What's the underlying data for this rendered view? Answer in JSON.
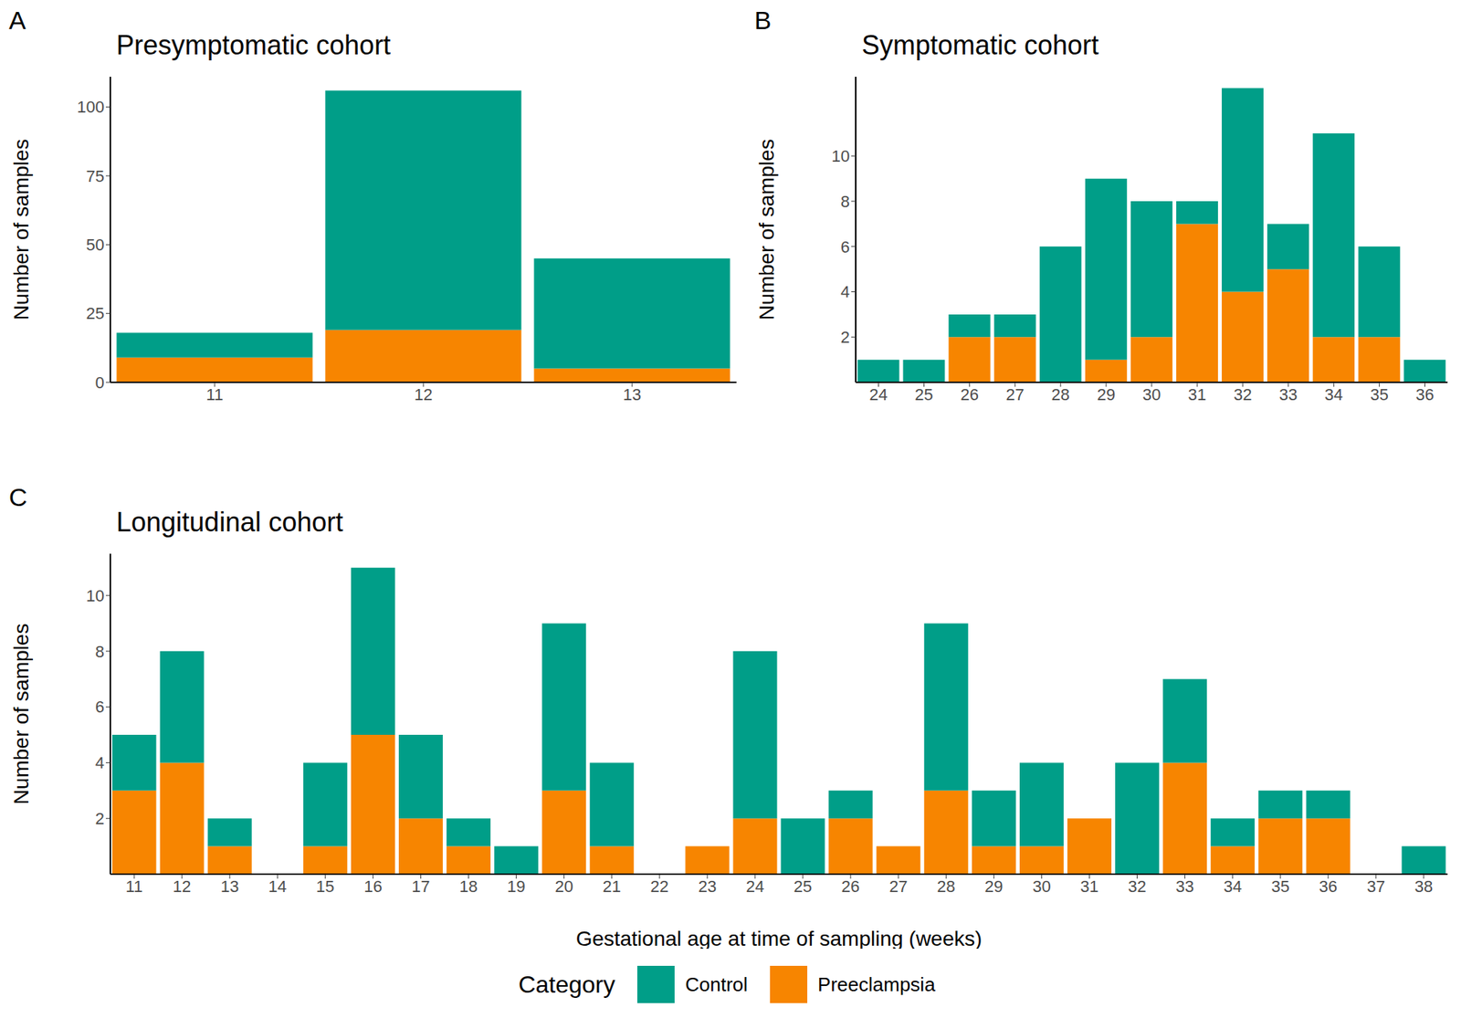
{
  "chart_data": [
    {
      "type": "bar",
      "panel": "A",
      "title": "Presymptomatic cohort",
      "y_label": "Number of samples",
      "stacked": true,
      "categories": [
        "11",
        "12",
        "13"
      ],
      "series": [
        {
          "name": "Preeclampsia",
          "color": "#f78500",
          "values": [
            9,
            19,
            5
          ]
        },
        {
          "name": "Control",
          "color": "#009e88",
          "values": [
            9,
            87,
            40
          ]
        }
      ],
      "ylim": [
        0,
        111
      ],
      "yticks": [
        0,
        25,
        50,
        75,
        100
      ]
    },
    {
      "type": "bar",
      "panel": "B",
      "title": "Symptomatic cohort",
      "y_label": "Number of samples",
      "stacked": true,
      "categories": [
        "24",
        "25",
        "26",
        "27",
        "28",
        "29",
        "30",
        "31",
        "32",
        "33",
        "34",
        "35",
        "36"
      ],
      "series": [
        {
          "name": "Preeclampsia",
          "color": "#f78500",
          "values": [
            0,
            0,
            2,
            2,
            0,
            1,
            2,
            7,
            4,
            5,
            2,
            2,
            0
          ]
        },
        {
          "name": "Control",
          "color": "#009e88",
          "values": [
            1,
            1,
            1,
            1,
            6,
            8,
            6,
            1,
            9,
            2,
            9,
            4,
            1
          ]
        }
      ],
      "ylim": [
        0,
        13.5
      ],
      "yticks": [
        2,
        4,
        6,
        8,
        10
      ]
    },
    {
      "type": "bar",
      "panel": "C",
      "title": "Longitudinal cohort",
      "y_label": "Number of samples",
      "x_label": "Gestational age at time of sampling (weeks)",
      "stacked": true,
      "legend": "bottom",
      "legend_title": "Category",
      "categories": [
        "11",
        "12",
        "13",
        "14",
        "15",
        "16",
        "17",
        "18",
        "19",
        "20",
        "21",
        "22",
        "23",
        "24",
        "25",
        "26",
        "27",
        "28",
        "29",
        "30",
        "31",
        "32",
        "33",
        "34",
        "35",
        "36",
        "37",
        "38"
      ],
      "series": [
        {
          "name": "Preeclampsia",
          "color": "#f78500",
          "values": [
            3,
            4,
            1,
            0,
            1,
            5,
            2,
            1,
            0,
            3,
            1,
            0,
            1,
            2,
            0,
            2,
            1,
            3,
            1,
            1,
            2,
            0,
            4,
            1,
            2,
            2,
            0,
            0
          ]
        },
        {
          "name": "Control",
          "color": "#009e88",
          "values": [
            2,
            4,
            1,
            0,
            3,
            6,
            3,
            1,
            1,
            6,
            3,
            0,
            0,
            6,
            2,
            1,
            0,
            6,
            2,
            3,
            0,
            4,
            3,
            1,
            1,
            1,
            0,
            1
          ]
        }
      ],
      "ylim": [
        0,
        11.5
      ],
      "yticks": [
        2,
        4,
        6,
        8,
        10
      ]
    }
  ]
}
